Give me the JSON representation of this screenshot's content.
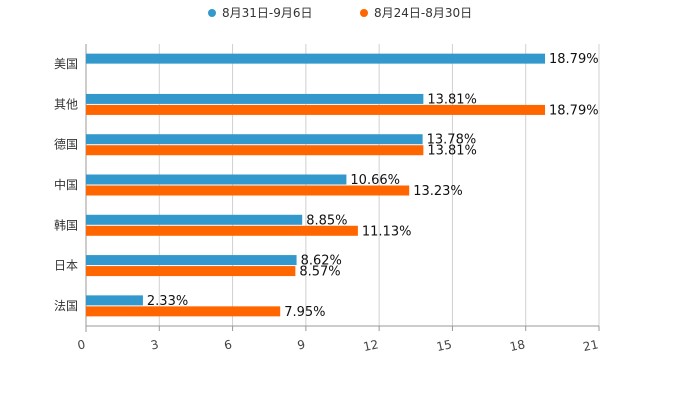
{
  "chart_data": {
    "type": "bar",
    "orientation": "horizontal",
    "title": "",
    "xlabel": "",
    "ylabel": "",
    "xlim": [
      0,
      21
    ],
    "ticks": [
      0,
      3,
      6,
      9,
      12,
      15,
      18,
      21
    ],
    "grid": true,
    "legend_position": "top",
    "categories": [
      "美国",
      "其他",
      "德国",
      "中国",
      "韩国",
      "日本",
      "法国"
    ],
    "series": [
      {
        "name": "8月31日-9月6日",
        "color": "#3399cc",
        "values": [
          18.79,
          13.81,
          13.78,
          10.66,
          8.85,
          8.62,
          2.33
        ],
        "labels": [
          "18.79%",
          "13.81%",
          "13.78%",
          "10.66%",
          "8.85%",
          "8.62%",
          "2.33%"
        ]
      },
      {
        "name": "8月24日-8月30日",
        "color": "#ff6600",
        "values": [
          null,
          18.79,
          13.81,
          13.23,
          11.13,
          8.57,
          7.95
        ],
        "labels": [
          null,
          "18.79%",
          "13.81%",
          "13.23%",
          "11.13%",
          "8.57%",
          "7.95%"
        ]
      }
    ]
  }
}
